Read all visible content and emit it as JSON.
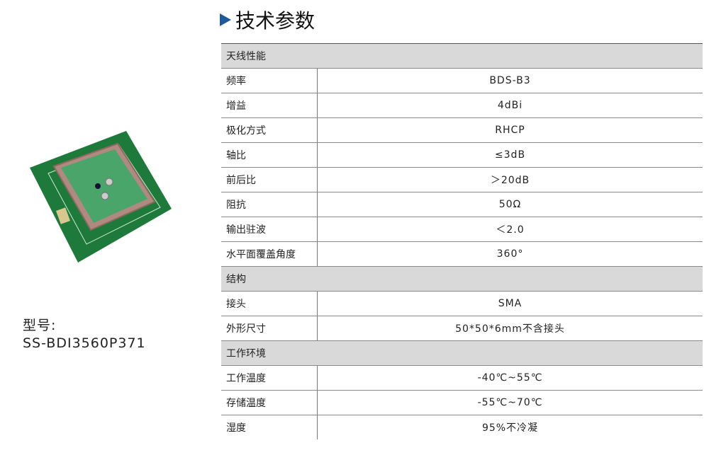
{
  "title": "技术参数",
  "colors": {
    "accent": "#1f5a9a",
    "section_bg": "#d9d9d9",
    "pcb_green": "#1e7a3a",
    "patch_green": "#4aa56a"
  },
  "model": {
    "label": "型号:",
    "value": "SS-BDI3560P371"
  },
  "sections": [
    {
      "name": "天线性能",
      "rows": [
        {
          "key": "频率",
          "value": "BDS-B3"
        },
        {
          "key": "增益",
          "value": "4dBi"
        },
        {
          "key": "极化方式",
          "value": "RHCP"
        },
        {
          "key": "轴比",
          "value": "≤3dB"
        },
        {
          "key": "前后比",
          "value": "＞20dB"
        },
        {
          "key": "阻抗",
          "value": "50Ω"
        },
        {
          "key": "输出驻波",
          "value": "＜2.0"
        },
        {
          "key": "水平面覆盖角度",
          "value": "360°"
        }
      ]
    },
    {
      "name": "结构",
      "rows": [
        {
          "key": "接头",
          "value": "SMA"
        },
        {
          "key": "外形尺寸",
          "value": "50*50*6mm不含接头"
        }
      ]
    },
    {
      "name": "工作环境",
      "rows": [
        {
          "key": "工作温度",
          "value": "-40℃~55℃"
        },
        {
          "key": "存储温度",
          "value": "-55℃~70℃"
        },
        {
          "key": "湿度",
          "value": "95%不冷凝"
        }
      ]
    }
  ]
}
